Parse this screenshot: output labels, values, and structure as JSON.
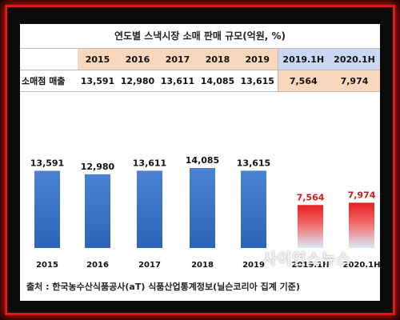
{
  "title": "연도별 스낵시장 소매 판매 규모(억원, %)",
  "table": {
    "row_label": "소매점 매출",
    "headers": [
      "2015",
      "2016",
      "2017",
      "2018",
      "2019",
      "2019.1H",
      "2020.1H"
    ],
    "values": [
      "13,591",
      "12,980",
      "13,611",
      "14,085",
      "13,615",
      "7,564",
      "7,974"
    ]
  },
  "chart_data": {
    "type": "bar",
    "categories": [
      "2015",
      "2016",
      "2017",
      "2018",
      "2019",
      "2019.1H",
      "2020.1H"
    ],
    "values": [
      13591,
      12980,
      13611,
      14085,
      13615,
      7564,
      7974
    ],
    "value_labels": [
      "13,591",
      "12,980",
      "13,611",
      "14,085",
      "13,615",
      "7,564",
      "7,974"
    ],
    "title": "연도별 스낵시장 소매 판매 규모(억원, %)",
    "xlabel": "",
    "ylabel": "",
    "grid": false,
    "colors": {
      "annual": "#2e64b8",
      "half_top": "#e81e1e",
      "half_bottom": "#dce8f8",
      "half_label": "#d61a1a"
    }
  },
  "source": "출처 : 한국농수산식품공사(aT) 식품산업통계정보(닐슨코리아 집계 기준)",
  "watermark": "사이언스뉴스"
}
